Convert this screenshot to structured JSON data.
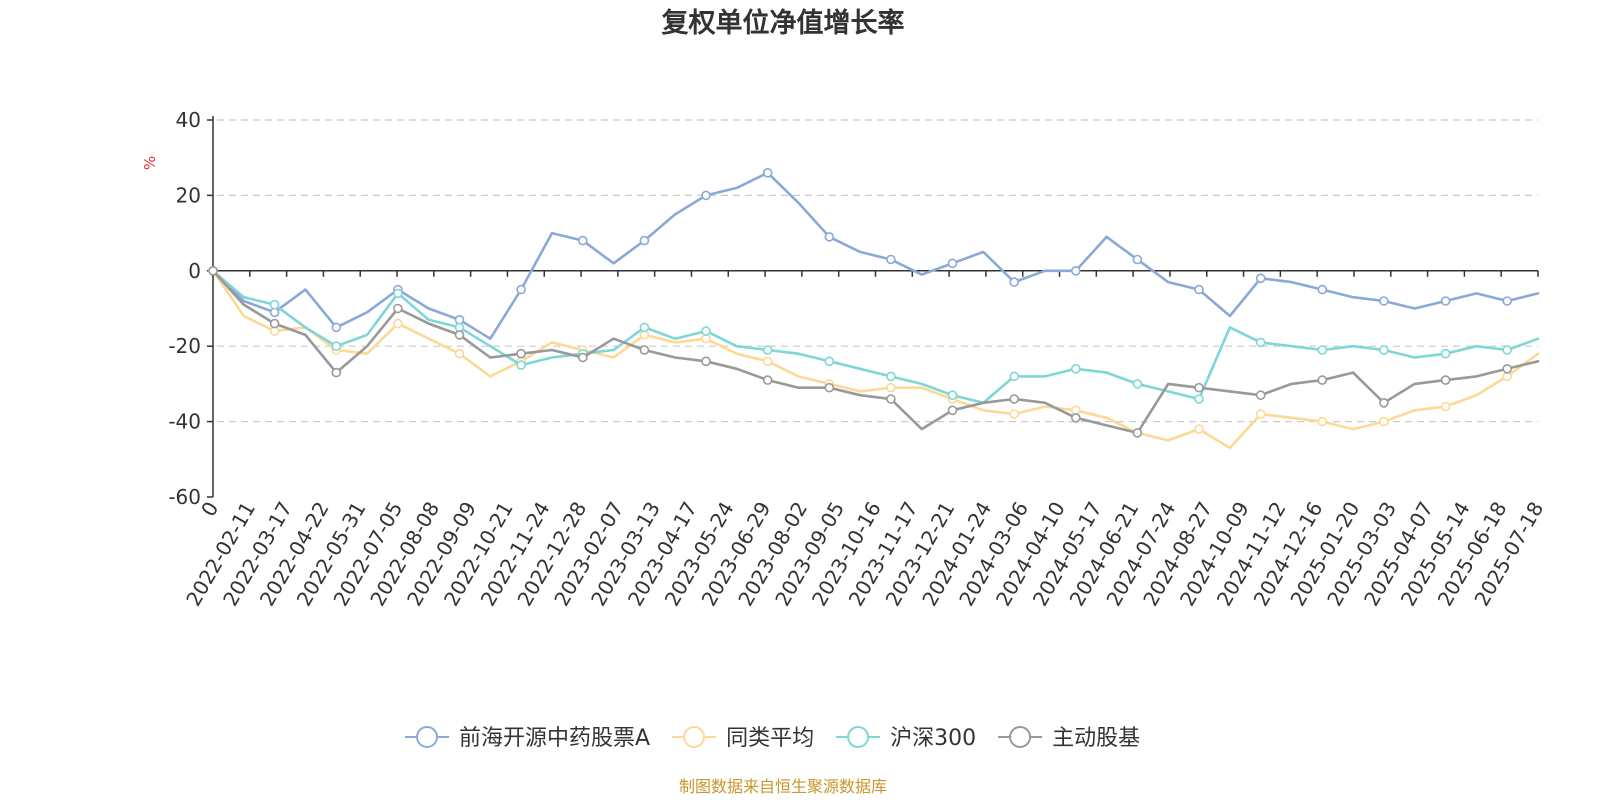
{
  "colors": {
    "fund": "#8aa9d8",
    "peer": "#fcd994",
    "hs300": "#7fd6d6",
    "active": "#999999",
    "grid": "#cccccc",
    "axis": "#333333",
    "unit": "#e03030",
    "source": "#c8962a"
  },
  "source_text": "制图数据来自恒生聚源数据库",
  "chart_data": {
    "type": "line",
    "title": "复权单位净值增长率",
    "ylabel": "%",
    "ylim": [
      -60,
      40
    ],
    "yticks": [
      -60,
      -40,
      -20,
      0,
      20,
      40
    ],
    "grid": true,
    "legend_position": "bottom",
    "x_ticks": [
      "0",
      "2022-02-11",
      "2022-03-17",
      "2022-04-22",
      "2022-05-31",
      "2022-07-05",
      "2022-08-08",
      "2022-09-09",
      "2022-10-21",
      "2022-11-24",
      "2022-12-28",
      "2023-02-07",
      "2023-03-13",
      "2023-04-17",
      "2023-05-24",
      "2023-06-29",
      "2023-08-02",
      "2023-09-05",
      "2023-10-16",
      "2023-11-17",
      "2023-12-21",
      "2024-01-24",
      "2024-03-06",
      "2024-04-10",
      "2024-05-17",
      "2024-06-21",
      "2024-07-24",
      "2024-08-27",
      "2024-10-09",
      "2024-11-12",
      "2024-12-16",
      "2025-01-20",
      "2025-03-03",
      "2025-04-07",
      "2025-05-14",
      "2025-06-18",
      "2025-07-18"
    ],
    "series": [
      {
        "name": "前海开源中药股票A",
        "color_key": "fund",
        "values": [
          0,
          -8,
          -11,
          -5,
          -15,
          -11,
          -5,
          -10,
          -13,
          -18,
          -5,
          10,
          8,
          2,
          8,
          15,
          20,
          22,
          26,
          18,
          9,
          5,
          3,
          -1,
          2,
          5,
          -3,
          0,
          0,
          9,
          3,
          -3,
          -5,
          -12,
          -2,
          -3,
          -5,
          -7,
          -8,
          -10,
          -8,
          -6,
          -8,
          -6
        ]
      },
      {
        "name": "同类平均",
        "color_key": "peer",
        "values": [
          0,
          -12,
          -16,
          -15,
          -21,
          -22,
          -14,
          -18,
          -22,
          -28,
          -24,
          -19,
          -21,
          -23,
          -17,
          -19,
          -18,
          -22,
          -24,
          -28,
          -30,
          -32,
          -31,
          -31,
          -34,
          -37,
          -38,
          -36,
          -37,
          -39,
          -43,
          -45,
          -42,
          -47,
          -38,
          -39,
          -40,
          -42,
          -40,
          -37,
          -36,
          -33,
          -28,
          -22
        ]
      },
      {
        "name": "沪深300",
        "color_key": "hs300",
        "values": [
          0,
          -7,
          -9,
          -15,
          -20,
          -17,
          -6,
          -13,
          -15,
          -20,
          -25,
          -23,
          -22,
          -21,
          -15,
          -18,
          -16,
          -20,
          -21,
          -22,
          -24,
          -26,
          -28,
          -30,
          -33,
          -35,
          -28,
          -28,
          -26,
          -27,
          -30,
          -32,
          -34,
          -15,
          -19,
          -20,
          -21,
          -20,
          -21,
          -23,
          -22,
          -20,
          -21,
          -18
        ]
      },
      {
        "name": "主动股基",
        "color_key": "active",
        "values": [
          0,
          -9,
          -14,
          -17,
          -27,
          -20,
          -10,
          -14,
          -17,
          -23,
          -22,
          -21,
          -23,
          -18,
          -21,
          -23,
          -24,
          -26,
          -29,
          -31,
          -31,
          -33,
          -34,
          -42,
          -37,
          -35,
          -34,
          -35,
          -39,
          -41,
          -43,
          -30,
          -31,
          -32,
          -33,
          -30,
          -29,
          -27,
          -35,
          -30,
          -29,
          -28,
          -26,
          -24
        ]
      }
    ]
  }
}
